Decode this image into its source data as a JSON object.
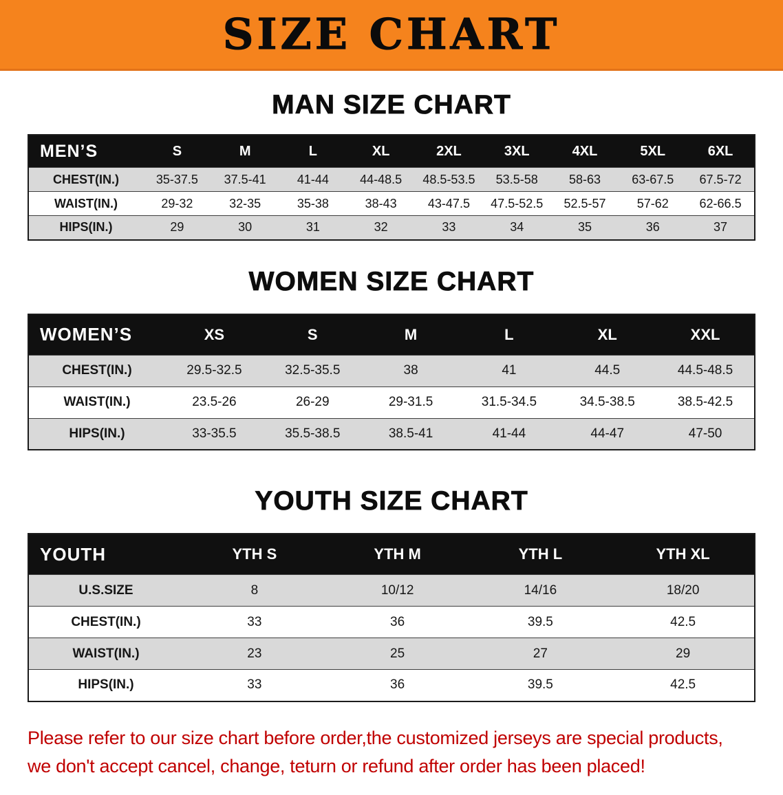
{
  "banner": {
    "title": "SIZE CHART"
  },
  "colors": {
    "banner_bg": "#F5831D",
    "table_header_bg": "#101010",
    "row_stripe": "#D9D9D9",
    "disclaimer_text": "#C00000"
  },
  "sections": [
    {
      "id": "men",
      "heading": "MAN SIZE CHART",
      "table": {
        "header": [
          "MEN’S",
          "S",
          "M",
          "L",
          "XL",
          "2XL",
          "3XL",
          "4XL",
          "5XL",
          "6XL"
        ],
        "rows": [
          {
            "label": "CHEST(IN.)",
            "values": [
              "35-37.5",
              "37.5-41",
              "41-44",
              "44-48.5",
              "48.5-53.5",
              "53.5-58",
              "58-63",
              "63-67.5",
              "67.5-72"
            ]
          },
          {
            "label": "WAIST(IN.)",
            "values": [
              "29-32",
              "32-35",
              "35-38",
              "38-43",
              "43-47.5",
              "47.5-52.5",
              "52.5-57",
              "57-62",
              "62-66.5"
            ]
          },
          {
            "label": "HIPS(IN.)",
            "values": [
              "29",
              "30",
              "31",
              "32",
              "33",
              "34",
              "35",
              "36",
              "37"
            ]
          }
        ]
      }
    },
    {
      "id": "women",
      "heading": "WOMEN SIZE CHART",
      "table": {
        "header": [
          "WOMEN’S",
          "XS",
          "S",
          "M",
          "L",
          "XL",
          "XXL"
        ],
        "rows": [
          {
            "label": "CHEST(IN.)",
            "values": [
              "29.5-32.5",
              "32.5-35.5",
              "38",
              "41",
              "44.5",
              "44.5-48.5"
            ]
          },
          {
            "label": "WAIST(IN.)",
            "values": [
              "23.5-26",
              "26-29",
              "29-31.5",
              "31.5-34.5",
              "34.5-38.5",
              "38.5-42.5"
            ]
          },
          {
            "label": "HIPS(IN.)",
            "values": [
              "33-35.5",
              "35.5-38.5",
              "38.5-41",
              "41-44",
              "44-47",
              "47-50"
            ]
          }
        ]
      }
    },
    {
      "id": "youth",
      "heading": "YOUTH SIZE CHART",
      "table": {
        "header": [
          "YOUTH",
          "YTH S",
          "YTH M",
          "YTH L",
          "YTH XL"
        ],
        "rows": [
          {
            "label": "U.S.SIZE",
            "values": [
              "8",
              "10/12",
              "14/16",
              "18/20"
            ]
          },
          {
            "label": "CHEST(IN.)",
            "values": [
              "33",
              "36",
              "39.5",
              "42.5"
            ]
          },
          {
            "label": "WAIST(IN.)",
            "values": [
              "23",
              "25",
              "27",
              "29"
            ]
          },
          {
            "label": "HIPS(IN.)",
            "values": [
              "33",
              "36",
              "39.5",
              "42.5"
            ]
          }
        ]
      }
    }
  ],
  "footer": {
    "line1": "Please refer to our size chart before order,the customized jerseys are special products,",
    "line2": "we don't accept cancel, change, teturn or refund after order has been placed!"
  }
}
